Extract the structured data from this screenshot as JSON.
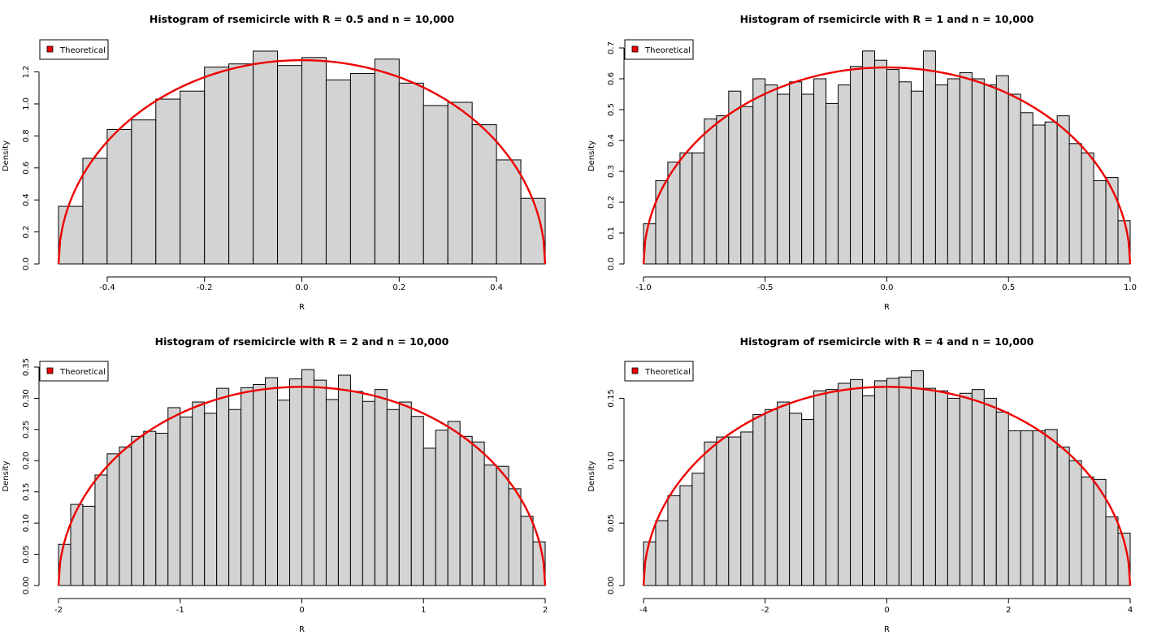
{
  "chart_data": [
    {
      "type": "bar",
      "title": "Histogram of rsemicircle with R = 0.5 and n = 10,000",
      "xlabel": "R",
      "ylabel": "Density",
      "xlim": [
        -0.5,
        0.5
      ],
      "ylim": [
        0,
        1.35
      ],
      "xticks": [
        -0.4,
        -0.2,
        0,
        0.2,
        0.4
      ],
      "xtick_labels": [
        "-0.4",
        "-0.2",
        "0.0",
        "0.2",
        "0.4"
      ],
      "yticks": [
        0,
        0.2,
        0.4,
        0.6,
        0.8,
        1.0,
        1.2
      ],
      "ytick_labels": [
        "0.0",
        "0.2",
        "0.4",
        "0.6",
        "0.8",
        "1.0",
        "1.2"
      ],
      "bin_start": -0.5,
      "bin_width": 0.05,
      "values": [
        0.36,
        0.66,
        0.84,
        0.9,
        1.03,
        1.08,
        1.23,
        1.25,
        1.33,
        1.24,
        1.29,
        1.15,
        1.19,
        1.28,
        1.13,
        0.99,
        1.01,
        0.87,
        0.65,
        0.41
      ],
      "legend": {
        "entries": [
          "Theoretical"
        ],
        "position": "top-left"
      },
      "curve": {
        "name": "Theoretical",
        "radius": 0.5,
        "color": "#ee0000"
      }
    },
    {
      "type": "bar",
      "title": "Histogram of rsemicircle with R = 1 and n = 10,000",
      "xlabel": "R",
      "ylabel": "Density",
      "xlim": [
        -1,
        1
      ],
      "ylim": [
        0,
        0.7
      ],
      "xticks": [
        -1,
        -0.5,
        0,
        0.5,
        1
      ],
      "xtick_labels": [
        "-1.0",
        "-0.5",
        "0.0",
        "0.5",
        "1.0"
      ],
      "yticks": [
        0,
        0.1,
        0.2,
        0.3,
        0.4,
        0.5,
        0.6,
        0.7
      ],
      "ytick_labels": [
        "0.0",
        "0.1",
        "0.2",
        "0.3",
        "0.4",
        "0.5",
        "0.6",
        "0.7"
      ],
      "bin_start": -1,
      "bin_width": 0.05,
      "values": [
        0.13,
        0.27,
        0.33,
        0.36,
        0.36,
        0.47,
        0.48,
        0.56,
        0.51,
        0.6,
        0.58,
        0.55,
        0.59,
        0.55,
        0.6,
        0.52,
        0.58,
        0.64,
        0.69,
        0.66,
        0.63,
        0.59,
        0.56,
        0.69,
        0.58,
        0.6,
        0.62,
        0.6,
        0.58,
        0.61,
        0.55,
        0.49,
        0.45,
        0.46,
        0.48,
        0.39,
        0.36,
        0.27,
        0.28,
        0.14
      ],
      "legend": {
        "entries": [
          "Theoretical"
        ],
        "position": "top-left"
      },
      "curve": {
        "name": "Theoretical",
        "radius": 1,
        "color": "#ee0000"
      }
    },
    {
      "type": "bar",
      "title": "Histogram of rsemicircle with R = 2 and n = 10,000",
      "xlabel": "R",
      "ylabel": "Density",
      "xlim": [
        -2,
        2
      ],
      "ylim": [
        0,
        0.35
      ],
      "xticks": [
        -2,
        -1,
        0,
        1,
        2
      ],
      "xtick_labels": [
        "-2",
        "-1",
        "0",
        "1",
        "2"
      ],
      "yticks": [
        0,
        0.05,
        0.1,
        0.15,
        0.2,
        0.25,
        0.3,
        0.35
      ],
      "ytick_labels": [
        "0.00",
        "0.05",
        "0.10",
        "0.15",
        "0.20",
        "0.25",
        "0.30",
        "0.35"
      ],
      "bin_start": -2,
      "bin_width": 0.1,
      "values": [
        0.066,
        0.13,
        0.127,
        0.177,
        0.211,
        0.222,
        0.239,
        0.247,
        0.244,
        0.285,
        0.27,
        0.294,
        0.276,
        0.316,
        0.282,
        0.317,
        0.322,
        0.333,
        0.297,
        0.331,
        0.346,
        0.329,
        0.298,
        0.337,
        0.311,
        0.295,
        0.314,
        0.282,
        0.294,
        0.271,
        0.22,
        0.249,
        0.263,
        0.239,
        0.23,
        0.193,
        0.191,
        0.155,
        0.111,
        0.07
      ],
      "legend": {
        "entries": [
          "Theoretical"
        ],
        "position": "top-left"
      },
      "curve": {
        "name": "Theoretical",
        "radius": 2,
        "color": "#ee0000"
      }
    },
    {
      "type": "bar",
      "title": "Histogram of rsemicircle with R = 4 and n = 10,000",
      "xlabel": "R",
      "ylabel": "Density",
      "xlim": [
        -4,
        4
      ],
      "ylim": [
        0,
        0.175
      ],
      "xticks": [
        -4,
        -2,
        0,
        2,
        4
      ],
      "xtick_labels": [
        "-4",
        "-2",
        "0",
        "2",
        "4"
      ],
      "yticks": [
        0,
        0.05,
        0.1,
        0.15
      ],
      "ytick_labels": [
        "0.00",
        "0.05",
        "0.10",
        "0.15"
      ],
      "bin_start": -4,
      "bin_width": 0.2,
      "values": [
        0.035,
        0.052,
        0.072,
        0.08,
        0.09,
        0.115,
        0.119,
        0.119,
        0.123,
        0.137,
        0.141,
        0.147,
        0.138,
        0.133,
        0.156,
        0.157,
        0.162,
        0.165,
        0.152,
        0.164,
        0.166,
        0.167,
        0.172,
        0.158,
        0.156,
        0.15,
        0.154,
        0.157,
        0.15,
        0.139,
        0.124,
        0.124,
        0.124,
        0.125,
        0.111,
        0.1,
        0.087,
        0.085,
        0.055,
        0.042
      ],
      "legend": {
        "entries": [
          "Theoretical"
        ],
        "position": "top-left"
      },
      "curve": {
        "name": "Theoretical",
        "radius": 4,
        "color": "#ee0000"
      }
    }
  ]
}
